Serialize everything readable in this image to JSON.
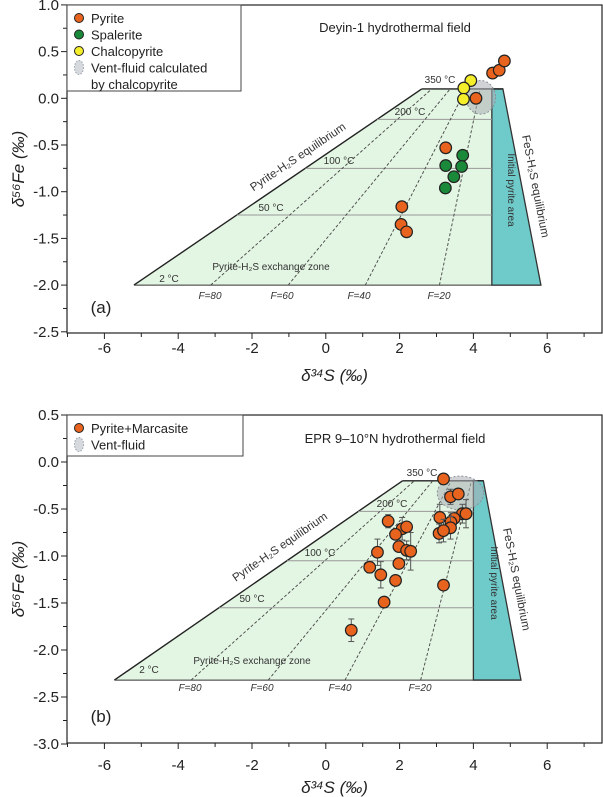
{
  "chart_data": [
    {
      "type": "scatter",
      "panel_label": "(a)",
      "title": "Deyin-1 hydrothermal field",
      "xlabel": "δ³⁴S (‰)",
      "ylabel": "δ⁵⁶Fe (‰)",
      "xlim": [
        -7,
        7.5
      ],
      "ylim": [
        -2.5,
        1.0
      ],
      "xticks": [
        -6,
        -4,
        -2,
        0,
        2,
        4,
        6
      ],
      "yticks": [
        "1.0",
        "0.5",
        "0.0",
        "-0.5",
        "-1.0",
        "-1.5",
        "-2.0",
        "-2.5"
      ],
      "legend_placement": "top-left",
      "grid": false,
      "series": [
        {
          "name": "Pyrite",
          "color": "#e8641e",
          "points": [
            [
              4.52,
              0.27
            ],
            [
              4.7,
              0.3
            ],
            [
              4.84,
              0.4
            ],
            [
              4.07,
              0.0
            ],
            [
              3.25,
              -0.53
            ],
            [
              2.06,
              -1.16
            ],
            [
              2.04,
              -1.35
            ],
            [
              2.19,
              -1.43
            ]
          ]
        },
        {
          "name": "Spalerite",
          "color": "#1a8a3a",
          "points": [
            [
              3.71,
              -0.61
            ],
            [
              3.25,
              -0.72
            ],
            [
              3.68,
              -0.73
            ],
            [
              3.47,
              -0.84
            ],
            [
              3.24,
              -0.96
            ]
          ]
        },
        {
          "name": "Chalcopyrite",
          "color": "#f5ee2a",
          "points": [
            [
              3.93,
              0.19
            ],
            [
              3.74,
              0.11
            ],
            [
              3.73,
              -0.01
            ]
          ]
        }
      ],
      "vent_fluid": {
        "legend": [
          "Vent-fluid calculated",
          "by chalcopyrite"
        ],
        "center": [
          4.2,
          0.01
        ],
        "radius": [
          0.4,
          0.18
        ]
      },
      "zones": {
        "exchange_zone": {
          "label": "Pyrite-H₂S exchange zone",
          "color": "#e3f5e3",
          "polygon": [
            [
              -5.2,
              -2.0
            ],
            [
              2.6,
              0.1
            ],
            [
              4.5,
              0.1
            ],
            [
              4.5,
              -2.0
            ]
          ]
        },
        "initial_pyrite_area": {
          "label": "Initial pyrite area",
          "color": "#6fcaca",
          "polygon": [
            [
              4.5,
              0.1
            ],
            [
              4.8,
              0.1
            ],
            [
              5.83,
              -2.0
            ],
            [
              4.5,
              -2.0
            ]
          ]
        },
        "pyrite_eq_label": "Pyrite-H₂S equilibrium",
        "fes_eq_label": "FeS-H₂S equilibrium"
      },
      "isotherms": [
        {
          "label": "350 °C",
          "y": 0.1,
          "x0": 2.6
        },
        {
          "label": "200 °C",
          "y": -0.225,
          "x0": 1.39
        },
        {
          "label": "100 °C",
          "y": -0.75,
          "x0": -0.55
        },
        {
          "label": "50 °C",
          "y": -1.25,
          "x0": -2.41
        },
        {
          "label": "2 °C",
          "y": -2.0,
          "x0": -5.2
        }
      ],
      "f_lines": [
        {
          "label": "F=80",
          "bottom": -3.12,
          "top": 2.87
        },
        {
          "label": "F=60",
          "bottom": -1.02,
          "top": 3.37
        },
        {
          "label": "F=40",
          "bottom": 1.07,
          "top": 3.8
        },
        {
          "label": "F=20",
          "bottom": 3.08,
          "top": 4.18
        }
      ]
    },
    {
      "type": "scatter",
      "panel_label": "(b)",
      "title": "EPR 9–10°N hydrothermal field",
      "xlabel": "δ³⁴S (‰)",
      "ylabel": "δ⁵⁶Fe (‰)",
      "xlim": [
        -7,
        7.5
      ],
      "ylim": [
        -3.0,
        0.5
      ],
      "xticks": [
        -6,
        -4,
        -2,
        0,
        2,
        4,
        6
      ],
      "yticks": [
        "0.5",
        "0.0",
        "-0.5",
        "-1.0",
        "-1.5",
        "-2.0",
        "-2.5",
        "-3.0"
      ],
      "legend_placement": "top-left",
      "grid": false,
      "series": [
        {
          "name": "Pyrite+Marcasite",
          "color": "#e8641e",
          "points": [
            [
              3.19,
              -0.18,
              0
            ],
            [
              3.38,
              -0.37,
              0.08
            ],
            [
              3.59,
              -0.34,
              0
            ],
            [
              3.09,
              -0.59,
              0.14
            ],
            [
              3.7,
              -0.55,
              0.1
            ],
            [
              3.8,
              -0.55,
              0.15
            ],
            [
              3.48,
              -0.6,
              0.05
            ],
            [
              3.39,
              -0.64,
              0.1
            ],
            [
              3.38,
              -0.7,
              0.12
            ],
            [
              3.07,
              -0.76,
              0.1
            ],
            [
              3.19,
              -0.73,
              0.12
            ],
            [
              1.69,
              -0.63,
              0.07
            ],
            [
              2.07,
              -0.71,
              0.12
            ],
            [
              2.19,
              -0.69,
              0.05
            ],
            [
              1.89,
              -0.77,
              0
            ],
            [
              1.98,
              -0.9,
              0
            ],
            [
              2.19,
              -0.94,
              0.1
            ],
            [
              2.3,
              -0.95,
              0.2
            ],
            [
              1.4,
              -0.96,
              0.14
            ],
            [
              1.98,
              -1.08,
              0.05
            ],
            [
              1.19,
              -1.12,
              0.06
            ],
            [
              1.49,
              -1.2,
              0.14
            ],
            [
              1.89,
              -1.26,
              0
            ],
            [
              3.19,
              -1.31,
              0
            ],
            [
              1.58,
              -1.49,
              0
            ],
            [
              0.69,
              -1.79,
              0.12
            ]
          ]
        }
      ],
      "vent_fluid": {
        "legend": [
          "Vent-fluid"
        ],
        "center": [
          3.65,
          -0.33
        ],
        "radius": [
          0.63,
          0.18
        ]
      },
      "zones": {
        "exchange_zone": {
          "label": "Pyrite-H₂S exchange zone",
          "color": "#e3f5e3",
          "polygon": [
            [
              -5.73,
              -2.32
            ],
            [
              2.08,
              -0.2
            ],
            [
              4.0,
              -0.2
            ],
            [
              4.0,
              -2.32
            ]
          ]
        },
        "initial_pyrite_area": {
          "label": "Initial pyrite area",
          "color": "#6fcaca",
          "polygon": [
            [
              4.0,
              -0.2
            ],
            [
              4.27,
              -0.2
            ],
            [
              5.29,
              -2.32
            ],
            [
              4.0,
              -2.32
            ]
          ]
        },
        "pyrite_eq_label": "Pyrite-H₂S equilibrium",
        "fes_eq_label": "FeS-H₂S equilibrium"
      },
      "isotherms": [
        {
          "label": "350 °C",
          "y": -0.2,
          "x0": 2.08
        },
        {
          "label": "200 °C",
          "y": -0.525,
          "x0": 0.88
        },
        {
          "label": "100 °C",
          "y": -1.05,
          "x0": -1.05
        },
        {
          "label": "50 °C",
          "y": -1.55,
          "x0": -2.89
        },
        {
          "label": "2 °C",
          "y": -2.32,
          "x0": -5.73
        }
      ],
      "f_lines": [
        {
          "label": "F=80",
          "bottom": -3.65,
          "top": 2.4
        },
        {
          "label": "F=60",
          "bottom": -1.56,
          "top": 2.9
        },
        {
          "label": "F=40",
          "bottom": 0.52,
          "top": 3.4
        },
        {
          "label": "F=20",
          "bottom": 2.57,
          "top": 3.95
        }
      ]
    }
  ]
}
